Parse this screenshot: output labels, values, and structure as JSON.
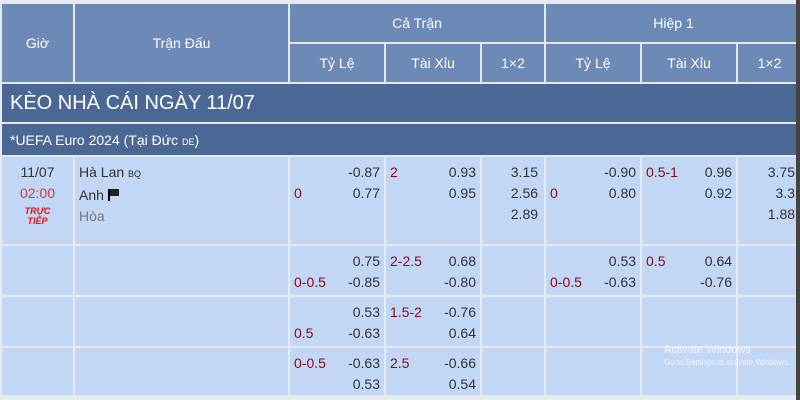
{
  "header": {
    "time": "Giờ",
    "match": "Trận Đấu",
    "full": "Cả Trận",
    "half": "Hiệp 1",
    "handicap": "Tỷ Lệ",
    "overunder": "Tài Xỉu",
    "x12": "1×2"
  },
  "title": "KÈO NHÀ CÁI NGÀY 11/07",
  "league": {
    "name": "*UEFA Euro 2024 (Tại Đức",
    "code": "DE",
    ")": ")"
  },
  "match": {
    "date": "11/07",
    "time": "02:00",
    "live": [
      "TRỰC",
      "TIẾP"
    ],
    "home": "Hà Lan",
    "home_tag": "BQ",
    "away": "Anh",
    "draw": "Hòa"
  },
  "rows": [
    {
      "ft_hdp": {
        "labels": [
          "",
          "0"
        ],
        "odds": [
          "-0.87",
          "0.77"
        ]
      },
      "ft_ou": {
        "labels": [
          "2",
          ""
        ],
        "odds": [
          "0.93",
          "0.95"
        ]
      },
      "ft_x12": [
        "3.15",
        "2.56",
        "2.89"
      ],
      "h1_hdp": {
        "labels": [
          "",
          "0"
        ],
        "odds": [
          "-0.90",
          "0.80"
        ]
      },
      "h1_ou": {
        "labels": [
          "0.5-1",
          ""
        ],
        "odds": [
          "0.96",
          "0.92"
        ]
      },
      "h1_x12": [
        "3.75",
        "3.3",
        "1.88"
      ]
    },
    {
      "ft_hdp": {
        "labels": [
          "",
          "0-0.5"
        ],
        "odds": [
          "0.75",
          "-0.85"
        ]
      },
      "ft_ou": {
        "labels": [
          "2-2.5",
          ""
        ],
        "odds": [
          "0.68",
          "-0.80"
        ]
      },
      "ft_x12": [],
      "h1_hdp": {
        "labels": [
          "",
          "0-0.5"
        ],
        "odds": [
          "0.53",
          "-0.63"
        ]
      },
      "h1_ou": {
        "labels": [
          "0.5",
          ""
        ],
        "odds": [
          "0.64",
          "-0.76"
        ]
      },
      "h1_x12": []
    },
    {
      "ft_hdp": {
        "labels": [
          "",
          "0.5"
        ],
        "odds": [
          "0.53",
          "-0.63"
        ]
      },
      "ft_ou": {
        "labels": [
          "1.5-2",
          ""
        ],
        "odds": [
          "-0.76",
          "0.64"
        ]
      },
      "ft_x12": [],
      "h1_hdp": null,
      "h1_ou": null,
      "h1_x12": []
    },
    {
      "ft_hdp": {
        "labels": [
          "0-0.5",
          ""
        ],
        "odds": [
          "-0.63",
          "0.53"
        ]
      },
      "ft_ou": {
        "labels": [
          "2.5",
          ""
        ],
        "odds": [
          "-0.66",
          "0.54"
        ]
      },
      "ft_x12": [],
      "h1_hdp": null,
      "h1_ou": null,
      "h1_x12": []
    }
  ],
  "watermark": {
    "line1": "Activate Windows",
    "line2": "Go to Settings to activate Windows."
  },
  "colors": {
    "header": "#6d89b6",
    "band": "#4b6794",
    "row": "#c2d6f6",
    "label": "#8b0a14",
    "time": "#e03a3a"
  }
}
